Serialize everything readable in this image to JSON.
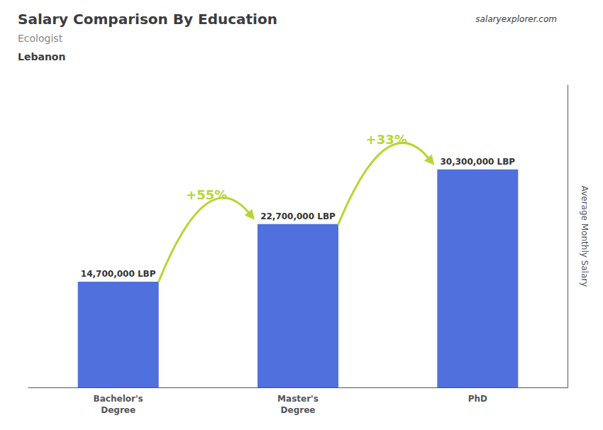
{
  "chart_data": {
    "type": "bar",
    "title": "Salary Comparison By Education",
    "subtitle": "Ecologist",
    "categories": [
      "Bachelor's\nDegree",
      "Master's\nDegree",
      "PhD"
    ],
    "values": [
      14700000,
      22700000,
      30300000
    ],
    "value_labels": [
      "14,700,000 LBP",
      "22,700,000 LBP",
      "30,300,000 LBP"
    ],
    "data_labels": true,
    "ylabel": "Average Monthly Salary",
    "ylim": [
      0,
      42000000
    ],
    "tick_labels": "x",
    "grid": false,
    "annotations": [
      {
        "text": "Lebanon"
      },
      {
        "text": "salaryexplorer.com"
      },
      {
        "text": "+55%",
        "from": "Bachelor's\nDegree",
        "to": "Master's\nDegree"
      },
      {
        "text": "+33%",
        "from": "Master's\nDegree",
        "to": "PhD"
      }
    ]
  }
}
